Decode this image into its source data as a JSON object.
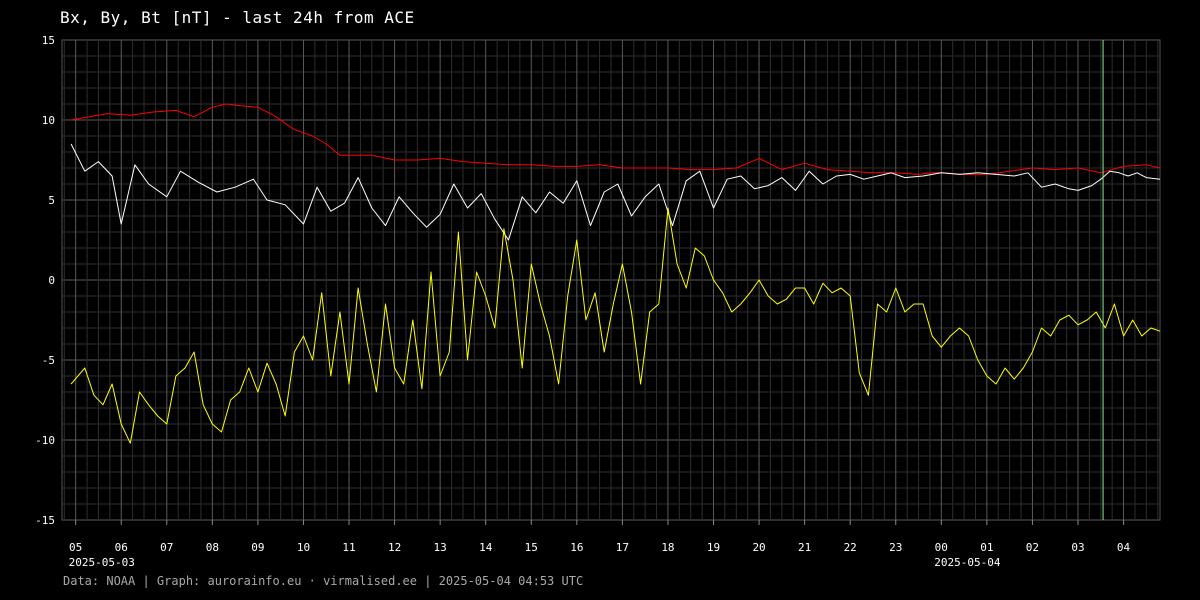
{
  "title": "Bx, By, Bt [nT] - last 24h from ACE",
  "footer": "Data: NOAA | Graph: aurorainfo.eu · virmalised.ee | 2025-05-04 04:53 UTC",
  "colors": {
    "background": "#000000",
    "grid": "#3a3a3a",
    "Bt": "#ff0000",
    "Bx": "#ffffff",
    "By": "#ffff00",
    "now_marker": "#90ee90"
  },
  "chart_data": {
    "type": "line",
    "ylim": [
      -15,
      15
    ],
    "xlim": [
      -0.3,
      23.8
    ],
    "y_ticks": [
      15,
      10,
      5,
      0,
      -5,
      -10,
      -15
    ],
    "x_tick_labels": [
      "05",
      "06",
      "07",
      "08",
      "09",
      "10",
      "11",
      "12",
      "13",
      "14",
      "15",
      "16",
      "17",
      "18",
      "19",
      "20",
      "21",
      "22",
      "23",
      "00",
      "01",
      "02",
      "03",
      "04"
    ],
    "date_labels": [
      {
        "text": "2025-05-03",
        "at_hour_index": 0
      },
      {
        "text": "2025-05-04",
        "at_hour_index": 19
      }
    ],
    "grid": true,
    "now_marker_x": 22.55,
    "series": [
      {
        "key": "Bt",
        "x": [
          -0.1,
          0.3,
          0.7,
          1.2,
          1.7,
          2.2,
          2.6,
          3.0,
          3.3,
          3.6,
          4.0,
          4.4,
          4.8,
          5.0,
          5.2,
          5.5,
          5.8,
          6.1,
          6.5,
          7.0,
          7.5,
          8.0,
          8.5,
          9.0,
          9.5,
          10.0,
          10.5,
          11.0,
          11.5,
          12.0,
          12.5,
          13.0,
          13.5,
          14.0,
          14.5,
          15.0,
          15.5,
          16.0,
          16.5,
          17.0,
          17.5,
          18.0,
          18.5,
          18.8,
          19.0,
          19.5,
          20.0,
          20.5,
          21.0,
          21.5,
          22.0,
          22.5,
          23.0,
          23.5,
          23.8
        ],
        "values": [
          10.0,
          10.2,
          10.4,
          10.3,
          10.5,
          10.6,
          10.2,
          10.8,
          11.0,
          10.9,
          10.8,
          10.2,
          9.4,
          9.2,
          9.0,
          8.5,
          7.8,
          7.8,
          7.8,
          7.5,
          7.5,
          7.6,
          7.4,
          7.3,
          7.2,
          7.2,
          7.1,
          7.1,
          7.2,
          7.0,
          7.0,
          7.0,
          6.9,
          6.9,
          7.0,
          7.6,
          6.9,
          7.3,
          6.9,
          6.8,
          6.7,
          6.7,
          6.6,
          6.7,
          6.7,
          6.6,
          6.6,
          6.8,
          7.0,
          6.9,
          7.0,
          6.7,
          7.1,
          7.2,
          7.0
        ]
      },
      {
        "key": "Bx",
        "x": [
          -0.1,
          0.2,
          0.5,
          0.8,
          1.0,
          1.3,
          1.6,
          2.0,
          2.3,
          2.7,
          3.1,
          3.5,
          3.9,
          4.2,
          4.6,
          5.0,
          5.3,
          5.6,
          5.9,
          6.2,
          6.5,
          6.8,
          7.1,
          7.4,
          7.7,
          8.0,
          8.3,
          8.6,
          8.9,
          9.2,
          9.5,
          9.8,
          10.1,
          10.4,
          10.7,
          11.0,
          11.3,
          11.6,
          11.9,
          12.2,
          12.5,
          12.8,
          13.1,
          13.4,
          13.7,
          14.0,
          14.3,
          14.6,
          14.9,
          15.2,
          15.5,
          15.8,
          16.1,
          16.4,
          16.7,
          17.0,
          17.3,
          17.6,
          17.9,
          18.2,
          18.6,
          19.0,
          19.4,
          19.8,
          20.2,
          20.6,
          20.9,
          21.2,
          21.5,
          21.8,
          22.0,
          22.3,
          22.5,
          22.7,
          22.9,
          23.1,
          23.3,
          23.5,
          23.8
        ],
        "values": [
          8.5,
          6.8,
          7.4,
          6.5,
          3.5,
          7.2,
          6.0,
          5.2,
          6.8,
          6.1,
          5.5,
          5.8,
          6.3,
          5.0,
          4.7,
          3.5,
          5.8,
          4.3,
          4.8,
          6.4,
          4.5,
          3.4,
          5.2,
          4.2,
          3.3,
          4.1,
          6.0,
          4.5,
          5.4,
          3.8,
          2.5,
          5.2,
          4.2,
          5.5,
          4.8,
          6.2,
          3.4,
          5.5,
          6.0,
          4.0,
          5.2,
          6.0,
          3.4,
          6.2,
          6.8,
          4.5,
          6.3,
          6.5,
          5.7,
          5.9,
          6.4,
          5.6,
          6.8,
          6.0,
          6.5,
          6.6,
          6.3,
          6.5,
          6.7,
          6.4,
          6.5,
          6.7,
          6.6,
          6.7,
          6.6,
          6.5,
          6.7,
          5.8,
          6.0,
          5.7,
          5.6,
          5.9,
          6.3,
          6.8,
          6.7,
          6.5,
          6.7,
          6.4,
          6.3
        ]
      },
      {
        "key": "By",
        "x": [
          -0.1,
          0.2,
          0.4,
          0.6,
          0.8,
          1.0,
          1.2,
          1.4,
          1.6,
          1.8,
          2.0,
          2.2,
          2.4,
          2.6,
          2.8,
          3.0,
          3.2,
          3.4,
          3.6,
          3.8,
          4.0,
          4.2,
          4.4,
          4.6,
          4.8,
          5.0,
          5.2,
          5.4,
          5.6,
          5.8,
          6.0,
          6.2,
          6.4,
          6.6,
          6.8,
          7.0,
          7.2,
          7.4,
          7.6,
          7.8,
          8.0,
          8.2,
          8.4,
          8.6,
          8.8,
          9.0,
          9.2,
          9.4,
          9.6,
          9.8,
          10.0,
          10.2,
          10.4,
          10.6,
          10.8,
          11.0,
          11.2,
          11.4,
          11.6,
          11.8,
          12.0,
          12.2,
          12.4,
          12.6,
          12.8,
          13.0,
          13.2,
          13.4,
          13.6,
          13.8,
          14.0,
          14.2,
          14.4,
          14.6,
          14.8,
          15.0,
          15.2,
          15.4,
          15.6,
          15.8,
          16.0,
          16.2,
          16.4,
          16.6,
          16.8,
          17.0,
          17.2,
          17.4,
          17.6,
          17.8,
          18.0,
          18.2,
          18.4,
          18.6,
          18.8,
          19.0,
          19.2,
          19.4,
          19.6,
          19.8,
          20.0,
          20.2,
          20.4,
          20.6,
          20.8,
          21.0,
          21.2,
          21.4,
          21.6,
          21.8,
          22.0,
          22.2,
          22.4,
          22.6,
          22.8,
          23.0,
          23.2,
          23.4,
          23.6,
          23.8
        ],
        "values": [
          -6.5,
          -5.5,
          -7.2,
          -7.8,
          -6.5,
          -9.0,
          -10.2,
          -7.0,
          -7.8,
          -8.5,
          -9.0,
          -6.0,
          -5.5,
          -4.5,
          -7.8,
          -9.0,
          -9.5,
          -7.5,
          -7.0,
          -5.5,
          -7.0,
          -5.2,
          -6.5,
          -8.5,
          -4.5,
          -3.5,
          -5.0,
          -0.8,
          -6.0,
          -2.0,
          -6.5,
          -0.5,
          -4.0,
          -7.0,
          -1.5,
          -5.5,
          -6.5,
          -2.5,
          -6.8,
          0.5,
          -6.0,
          -4.5,
          3.0,
          -5.0,
          0.5,
          -1.0,
          -3.0,
          3.2,
          0.0,
          -5.5,
          1.0,
          -1.5,
          -3.5,
          -6.5,
          -1.0,
          2.5,
          -2.5,
          -0.8,
          -4.5,
          -1.5,
          1.0,
          -2.0,
          -6.5,
          -2.0,
          -1.5,
          4.5,
          1.0,
          -0.5,
          2.0,
          1.5,
          0.0,
          -0.8,
          -2.0,
          -1.5,
          -0.8,
          0.0,
          -1.0,
          -1.5,
          -1.2,
          -0.5,
          -0.5,
          -1.5,
          -0.2,
          -0.8,
          -0.5,
          -1.0,
          -5.8,
          -7.2,
          -1.5,
          -2.0,
          -0.5,
          -2.0,
          -1.5,
          -1.5,
          -3.5,
          -4.2,
          -3.5,
          -3.0,
          -3.5,
          -5.0,
          -6.0,
          -6.5,
          -5.5,
          -6.2,
          -5.5,
          -4.5,
          -3.0,
          -3.5,
          -2.5,
          -2.2,
          -2.8,
          -2.5,
          -2.0,
          -3.0,
          -1.5,
          -3.5,
          -2.5,
          -3.5,
          -3.0,
          -3.2
        ]
      }
    ]
  }
}
